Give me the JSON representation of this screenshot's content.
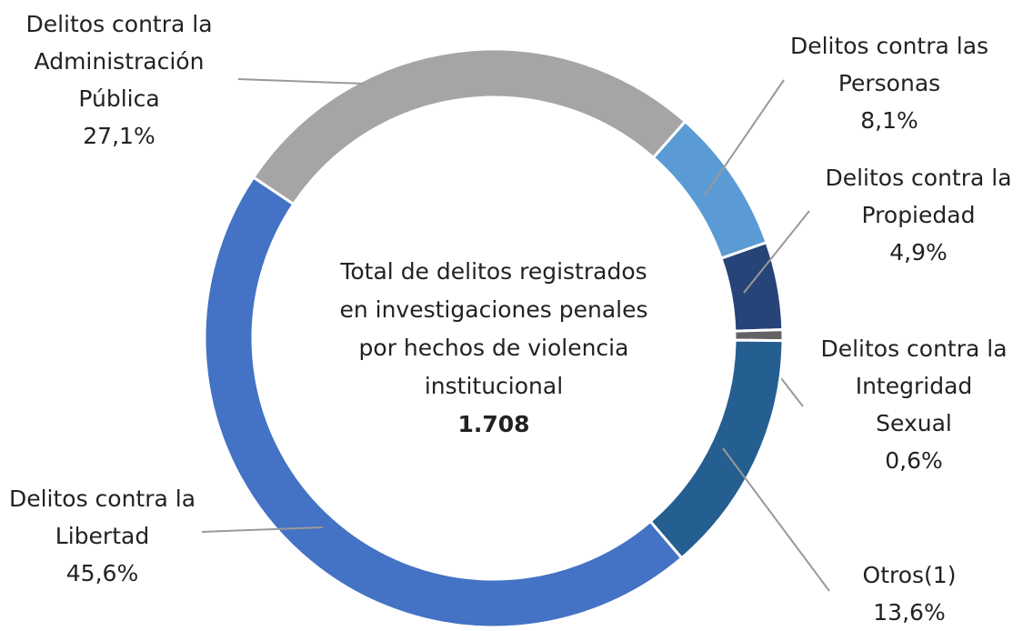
{
  "chart_data": {
    "type": "donut",
    "center_text": "Total de delitos registrados en investigaciones penales por hechos de violencia institucional",
    "total": {
      "value": 1708,
      "label": "1.708"
    },
    "categories": [
      "Delitos contra la Administración Pública",
      "Delitos contra las Personas",
      "Delitos contra la Propiedad",
      "Delitos contra la Integridad Sexual",
      "Otros(1)",
      "Delitos contra la Libertad"
    ],
    "values": [
      27.1,
      8.1,
      4.9,
      0.6,
      13.6,
      45.6
    ],
    "value_labels": [
      "27,1%",
      "8,1%",
      "4,9%",
      "0,6%",
      "13,6%",
      "45,6%"
    ],
    "colors": [
      "#a5a5a5",
      "#5b9bd5",
      "#264478",
      "#636363",
      "#255e91",
      "#4472c4"
    ]
  }
}
